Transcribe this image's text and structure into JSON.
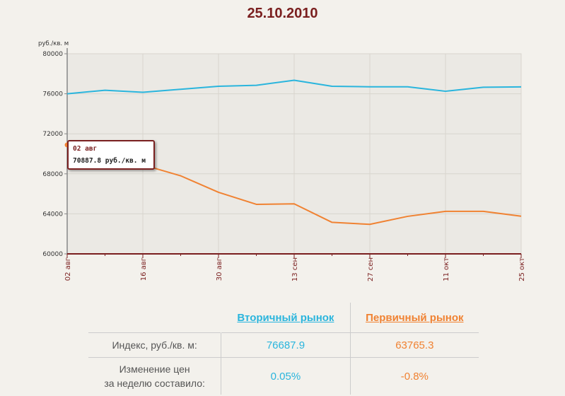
{
  "title": "25.10.2010",
  "chart_data": {
    "type": "line",
    "unit_label": "руб./кв. м",
    "ylim": [
      60000,
      80000
    ],
    "yticks": [
      60000,
      64000,
      68000,
      72000,
      76000,
      80000
    ],
    "x": [
      0,
      7,
      14,
      21,
      28,
      35,
      42,
      49,
      56,
      63,
      70,
      77,
      84
    ],
    "xlim": [
      0,
      84
    ],
    "xticks": [
      {
        "x": 0,
        "label": "02 авг"
      },
      {
        "x": 14,
        "label": "16 авг"
      },
      {
        "x": 28,
        "label": "30 авг"
      },
      {
        "x": 42,
        "label": "13 сен"
      },
      {
        "x": 56,
        "label": "27 сен"
      },
      {
        "x": 70,
        "label": "11 окт"
      },
      {
        "x": 84,
        "label": "25 окт"
      }
    ],
    "series": [
      {
        "name": "Вторичный рынок",
        "color": "#2ab5dd",
        "values": [
          76000,
          76350,
          76150,
          76450,
          76750,
          76850,
          77350,
          76750,
          76700,
          76700,
          76250,
          76650,
          76688
        ]
      },
      {
        "name": "Первичный рынок",
        "color": "#f08232",
        "values": [
          70888,
          68800,
          68900,
          67800,
          66150,
          64950,
          65000,
          63150,
          62950,
          63750,
          64250,
          64250,
          63765
        ]
      }
    ],
    "grid": true,
    "tooltip": {
      "date": "02 авг",
      "value": "70887.8 руб./кв. м"
    }
  },
  "summary": {
    "headers": {
      "secondary": "Вторичный рынок",
      "primary": "Первичный рынок"
    },
    "rows": [
      {
        "label_line1": "Индекс, руб./кв. м:",
        "label_line2": "",
        "secondary": "76687.9",
        "primary": "63765.3"
      },
      {
        "label_line1": "Изменение цен",
        "label_line2": "за неделю составило:",
        "secondary": "0.05%",
        "primary": "-0.8%"
      }
    ]
  }
}
